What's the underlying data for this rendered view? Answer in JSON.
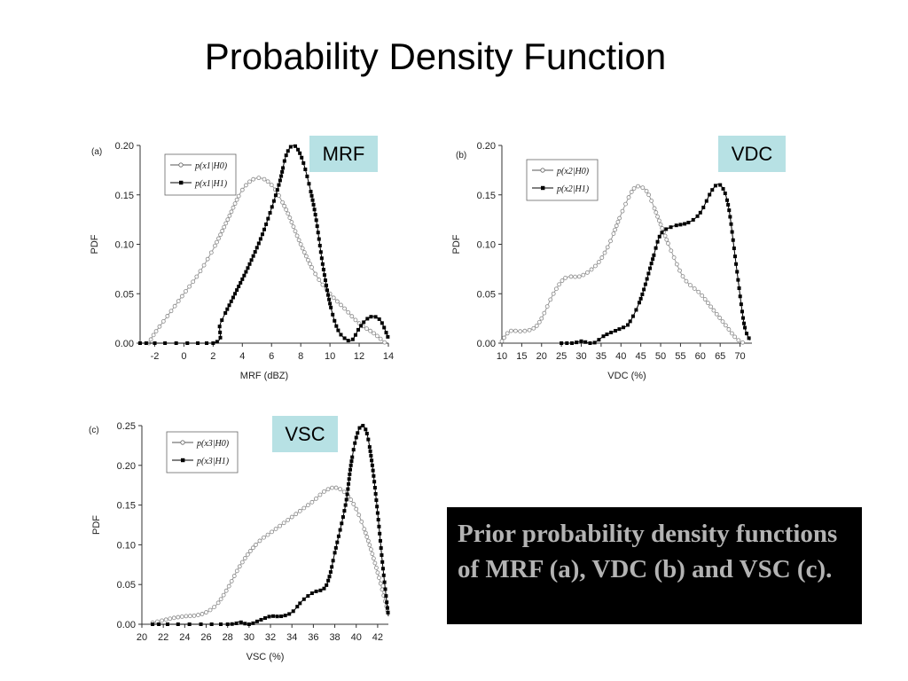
{
  "title": "Probability Density Function",
  "tags": {
    "mrf": "MRF",
    "vdc": "VDC",
    "vsc": "VSC"
  },
  "caption": "Prior probability density functions of MRF (a), VDC (b) and VSC (c).",
  "colors": {
    "tag_bg": "#b7e1e4",
    "caption_bg": "#000000",
    "caption_text": "#b3b3b3",
    "h0_series": "#999999",
    "h1_series": "#000000"
  },
  "chart_data": [
    {
      "id": "a",
      "type": "line",
      "panel_label": "(a)",
      "xlabel": "MRF (dBZ)",
      "ylabel": "PDF",
      "xlim": [
        -3,
        14
      ],
      "ylim": [
        0,
        0.2
      ],
      "xticks": [
        -2,
        0,
        2,
        4,
        6,
        8,
        10,
        12,
        14
      ],
      "yticks": [
        0.0,
        0.05,
        0.1,
        0.15,
        0.2
      ],
      "legend_position": "top-left",
      "series": [
        {
          "name": "p(x1|H0)",
          "sub": "1",
          "marker": "open-circle",
          "points": [
            [
              -2.4,
              0.0
            ],
            [
              -2,
              0.01
            ],
            [
              -1,
              0.03
            ],
            [
              0,
              0.05
            ],
            [
              1,
              0.07
            ],
            [
              2,
              0.095
            ],
            [
              3,
              0.125
            ],
            [
              4,
              0.155
            ],
            [
              5,
              0.167
            ],
            [
              6,
              0.16
            ],
            [
              7,
              0.135
            ],
            [
              8,
              0.1
            ],
            [
              9,
              0.07
            ],
            [
              10,
              0.05
            ],
            [
              11,
              0.035
            ],
            [
              12,
              0.02
            ],
            [
              13,
              0.01
            ],
            [
              13.8,
              0.0
            ]
          ]
        },
        {
          "name": "p(x1|H1)",
          "sub": "1",
          "marker": "filled-square",
          "points": [
            [
              -3,
              0.0
            ],
            [
              2,
              0.0
            ],
            [
              2.5,
              0.02
            ],
            [
              3.5,
              0.05
            ],
            [
              4.5,
              0.08
            ],
            [
              5.5,
              0.115
            ],
            [
              6.5,
              0.16
            ],
            [
              7,
              0.19
            ],
            [
              7.5,
              0.2
            ],
            [
              8,
              0.19
            ],
            [
              8.5,
              0.165
            ],
            [
              9,
              0.13
            ],
            [
              9.5,
              0.08
            ],
            [
              10,
              0.04
            ],
            [
              10.5,
              0.015
            ],
            [
              11,
              0.005
            ],
            [
              11.5,
              0.003
            ],
            [
              12,
              0.015
            ],
            [
              12.5,
              0.024
            ],
            [
              13,
              0.027
            ],
            [
              13.5,
              0.022
            ],
            [
              14,
              0.005
            ]
          ]
        }
      ]
    },
    {
      "id": "b",
      "type": "line",
      "panel_label": "(b)",
      "xlabel": "VDC (%)",
      "ylabel": "PDF",
      "xlim": [
        10,
        73
      ],
      "ylim": [
        0,
        0.2
      ],
      "xticks": [
        10,
        15,
        20,
        25,
        30,
        35,
        40,
        45,
        50,
        55,
        60,
        65,
        70
      ],
      "yticks": [
        0.0,
        0.05,
        0.1,
        0.15,
        0.2
      ],
      "legend_position": "top-left",
      "series": [
        {
          "name": "p(x2|H0)",
          "sub": "2",
          "marker": "open-circle",
          "points": [
            [
              10,
              0.002
            ],
            [
              12,
              0.012
            ],
            [
              15,
              0.012
            ],
            [
              18,
              0.015
            ],
            [
              20,
              0.025
            ],
            [
              23,
              0.05
            ],
            [
              26,
              0.066
            ],
            [
              30,
              0.068
            ],
            [
              34,
              0.08
            ],
            [
              37,
              0.1
            ],
            [
              40,
              0.13
            ],
            [
              43,
              0.155
            ],
            [
              45,
              0.158
            ],
            [
              47,
              0.15
            ],
            [
              50,
              0.12
            ],
            [
              53,
              0.09
            ],
            [
              56,
              0.065
            ],
            [
              60,
              0.05
            ],
            [
              63,
              0.035
            ],
            [
              66,
              0.02
            ],
            [
              69,
              0.005
            ],
            [
              71,
              0.0
            ]
          ]
        },
        {
          "name": "p(x2|H1)",
          "sub": "2",
          "marker": "filled-square",
          "points": [
            [
              25,
              0.0
            ],
            [
              28,
              0.0
            ],
            [
              30,
              0.002
            ],
            [
              33,
              0.0
            ],
            [
              36,
              0.008
            ],
            [
              40,
              0.015
            ],
            [
              42,
              0.02
            ],
            [
              45,
              0.045
            ],
            [
              48,
              0.085
            ],
            [
              50,
              0.11
            ],
            [
              53,
              0.118
            ],
            [
              57,
              0.122
            ],
            [
              60,
              0.132
            ],
            [
              63,
              0.155
            ],
            [
              65,
              0.16
            ],
            [
              67,
              0.14
            ],
            [
              69,
              0.08
            ],
            [
              71,
              0.02
            ],
            [
              72.5,
              0.003
            ]
          ]
        }
      ]
    },
    {
      "id": "c",
      "type": "line",
      "panel_label": "(c)",
      "xlabel": "VSC (%)",
      "ylabel": "PDF",
      "xlim": [
        20,
        43
      ],
      "ylim": [
        0,
        0.25
      ],
      "xticks": [
        20,
        22,
        24,
        26,
        28,
        30,
        32,
        34,
        36,
        38,
        40,
        42
      ],
      "yticks": [
        0.0,
        0.05,
        0.1,
        0.15,
        0.2,
        0.25
      ],
      "legend_position": "top-left",
      "series": [
        {
          "name": "p(x3|H0)",
          "sub": "3",
          "marker": "open-circle",
          "points": [
            [
              21,
              0.002
            ],
            [
              22,
              0.005
            ],
            [
              23,
              0.008
            ],
            [
              24,
              0.01
            ],
            [
              25,
              0.011
            ],
            [
              26,
              0.015
            ],
            [
              27,
              0.025
            ],
            [
              28,
              0.045
            ],
            [
              29,
              0.07
            ],
            [
              30,
              0.09
            ],
            [
              31,
              0.105
            ],
            [
              32,
              0.115
            ],
            [
              33,
              0.125
            ],
            [
              34,
              0.135
            ],
            [
              35,
              0.145
            ],
            [
              36,
              0.155
            ],
            [
              37,
              0.167
            ],
            [
              38,
              0.172
            ],
            [
              39,
              0.165
            ],
            [
              40,
              0.145
            ],
            [
              41,
              0.11
            ],
            [
              42,
              0.065
            ],
            [
              43,
              0.013
            ]
          ]
        },
        {
          "name": "p(x3|H1)",
          "sub": "3",
          "marker": "filled-square",
          "points": [
            [
              21,
              0.0
            ],
            [
              28,
              0.0
            ],
            [
              29,
              0.003
            ],
            [
              30,
              0.0
            ],
            [
              31,
              0.005
            ],
            [
              32,
              0.01
            ],
            [
              33,
              0.01
            ],
            [
              34,
              0.015
            ],
            [
              35,
              0.03
            ],
            [
              36,
              0.04
            ],
            [
              37,
              0.045
            ],
            [
              37.5,
              0.06
            ],
            [
              38,
              0.09
            ],
            [
              39,
              0.15
            ],
            [
              39.5,
              0.2
            ],
            [
              40,
              0.235
            ],
            [
              40.5,
              0.25
            ],
            [
              41,
              0.24
            ],
            [
              41.5,
              0.2
            ],
            [
              42,
              0.14
            ],
            [
              42.5,
              0.07
            ],
            [
              43,
              0.01
            ]
          ]
        }
      ]
    }
  ]
}
